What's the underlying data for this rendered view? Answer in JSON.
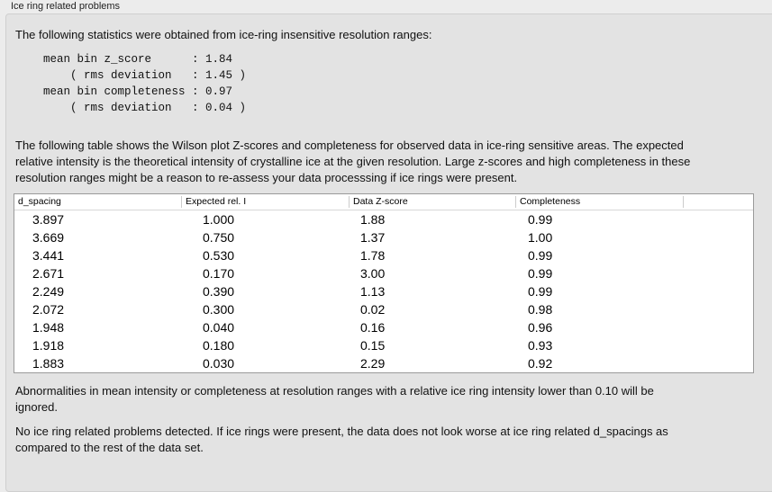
{
  "group_title": "Ice ring related problems",
  "intro": "The following statistics were obtained from ice-ring insensitive resolution ranges:",
  "stats": [
    "mean bin z_score      : 1.84",
    "    ( rms deviation   : 1.45 )",
    "mean bin completeness : 0.97",
    "    ( rms deviation   : 0.04 )"
  ],
  "table_intro": "The following table shows the Wilson plot Z-scores and completeness for observed data in ice-ring sensitive areas. The expected relative intensity is the theoretical intensity of crystalline ice at the given resolution. Large z-scores and high completeness in these resolution ranges might be a reason to re-assess your data processsing if ice rings were present.",
  "table": {
    "headers": [
      "d_spacing",
      "Expected rel. I",
      "Data Z-score",
      "Completeness"
    ],
    "rows": [
      [
        "3.897",
        "1.000",
        "1.88",
        "0.99"
      ],
      [
        "3.669",
        "0.750",
        "1.37",
        "1.00"
      ],
      [
        "3.441",
        "0.530",
        "1.78",
        "0.99"
      ],
      [
        "2.671",
        "0.170",
        "3.00",
        "0.99"
      ],
      [
        "2.249",
        "0.390",
        "1.13",
        "0.99"
      ],
      [
        "2.072",
        "0.300",
        "0.02",
        "0.98"
      ],
      [
        "1.948",
        "0.040",
        "0.16",
        "0.96"
      ],
      [
        "1.918",
        "0.180",
        "0.15",
        "0.93"
      ],
      [
        "1.883",
        "0.030",
        "2.29",
        "0.92"
      ]
    ]
  },
  "note": "Abnormalities in mean intensity or completeness at resolution ranges with a relative ice ring intensity lower than 0.10 will be ignored.",
  "conclusion": "No ice ring related problems detected. If ice rings were present, the data does not look worse at ice ring related d_spacings as compared to the rest of the data set."
}
